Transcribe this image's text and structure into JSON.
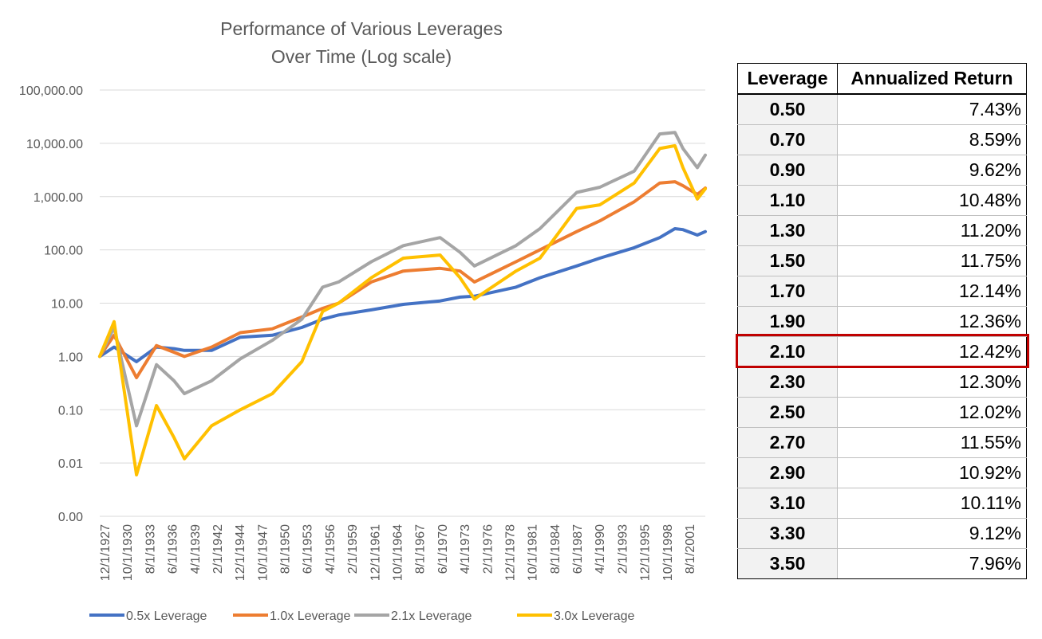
{
  "chart_data": {
    "type": "line",
    "title": [
      "Performance of Various Leverages",
      "Over Time (Log scale)"
    ],
    "xlabel": "",
    "ylabel": "",
    "yscale": "log",
    "ylim": [
      0.001,
      100000
    ],
    "grid": true,
    "legend_position": "bottom",
    "y_tick_values": [
      0.001,
      0.01,
      0.1,
      1,
      10,
      100,
      1000,
      10000,
      100000
    ],
    "y_tick_labels": [
      "0.00",
      "0.01",
      "0.10",
      "1.00",
      "10.00",
      "100.00",
      "1,000.00",
      "10,000.00",
      "100,000.00"
    ],
    "x_tick_labels": [
      "12/1/1927",
      "10/1/1930",
      "8/1/1933",
      "6/1/1936",
      "4/1/1939",
      "2/1/1942",
      "12/1/1944",
      "10/1/1947",
      "8/1/1950",
      "6/1/1953",
      "4/1/1956",
      "2/1/1959",
      "12/1/1961",
      "10/1/1964",
      "8/1/1967",
      "6/1/1970",
      "4/1/1973",
      "2/1/1976",
      "12/1/1978",
      "10/1/1981",
      "8/1/1984",
      "6/1/1987",
      "4/1/1990",
      "2/1/1993",
      "12/1/1995",
      "10/1/1998",
      "8/1/2001"
    ],
    "x": [
      1927.9,
      1929.7,
      1932.5,
      1935.0,
      1937.2,
      1938.5,
      1941.9,
      1945.5,
      1949.5,
      1953.2,
      1955.8,
      1957.8,
      1961.9,
      1965.9,
      1970.5,
      1973.0,
      1974.8,
      1980.0,
      1983.0,
      1987.6,
      1990.5,
      1994.8,
      1998.0,
      1999.9,
      2000.9,
      2002.7,
      2003.7
    ],
    "series": [
      {
        "name": "0.5x Leverage",
        "color": "#4472c4",
        "values": [
          1.0,
          1.5,
          0.8,
          1.5,
          1.4,
          1.3,
          1.3,
          2.3,
          2.5,
          3.5,
          5.0,
          6.0,
          7.5,
          9.5,
          11.0,
          13.0,
          13.5,
          20,
          30,
          50,
          70,
          110,
          170,
          250,
          240,
          190,
          220
        ]
      },
      {
        "name": "1.0x Leverage",
        "color": "#ed7d31",
        "values": [
          1.0,
          2.5,
          0.4,
          1.6,
          1.2,
          1.0,
          1.5,
          2.8,
          3.3,
          5.5,
          8.0,
          10,
          25,
          40,
          45,
          40,
          25,
          60,
          100,
          220,
          350,
          800,
          1800,
          1900,
          1600,
          1100,
          1450
        ]
      },
      {
        "name": "2.1x Leverage",
        "color": "#a5a5a5",
        "values": [
          1.0,
          3.5,
          0.05,
          0.7,
          0.35,
          0.2,
          0.35,
          0.9,
          2.0,
          5.0,
          20,
          25,
          60,
          120,
          170,
          90,
          50,
          120,
          250,
          1200,
          1500,
          3000,
          15000,
          16000,
          8000,
          3500,
          6000
        ]
      },
      {
        "name": "3.0x Leverage",
        "color": "#ffc000",
        "values": [
          1.0,
          4.5,
          0.006,
          0.12,
          0.03,
          0.012,
          0.05,
          0.1,
          0.2,
          0.8,
          7,
          10,
          30,
          70,
          80,
          30,
          12,
          40,
          70,
          600,
          700,
          1800,
          8000,
          9000,
          3500,
          900,
          1400
        ]
      }
    ]
  },
  "table": {
    "headers": [
      "Leverage",
      "Annualized Return"
    ],
    "rows": [
      [
        "0.50",
        "7.43%"
      ],
      [
        "0.70",
        "8.59%"
      ],
      [
        "0.90",
        "9.62%"
      ],
      [
        "1.10",
        "10.48%"
      ],
      [
        "1.30",
        "11.20%"
      ],
      [
        "1.50",
        "11.75%"
      ],
      [
        "1.70",
        "12.14%"
      ],
      [
        "1.90",
        "12.36%"
      ],
      [
        "2.10",
        "12.42%"
      ],
      [
        "2.30",
        "12.30%"
      ],
      [
        "2.50",
        "12.02%"
      ],
      [
        "2.70",
        "11.55%"
      ],
      [
        "2.90",
        "10.92%"
      ],
      [
        "3.10",
        "10.11%"
      ],
      [
        "3.30",
        "9.12%"
      ],
      [
        "3.50",
        "7.96%"
      ]
    ],
    "highlighted_row_index": 8,
    "highlight_color": "#c00000"
  }
}
